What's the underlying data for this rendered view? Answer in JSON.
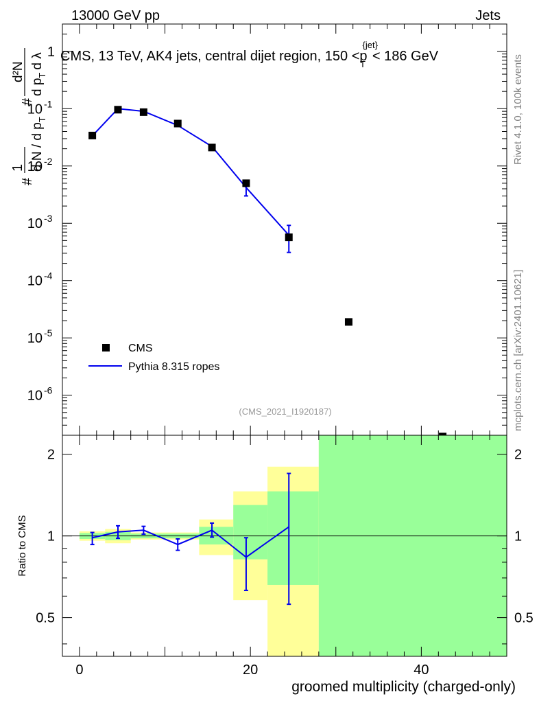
{
  "header": {
    "left": "13000 GeV pp",
    "right": "Jets"
  },
  "side_labels": {
    "rivet": "Rivet 4.1.0,  100k events",
    "mcplots": "mcplots.cern.ch [arXiv:2401.10621]"
  },
  "chart_data": {
    "type": "line",
    "title": "CMS, 13 TeV, AK4 jets, central dijet region, 150 < p_T^{jet} < 186 GeV",
    "title_parts": {
      "main": "CMS, 13 TeV, AK4 jets, central dijet region, 150 <",
      "p": "p",
      "sub": "T",
      "sup": "{jet}",
      "tail": "< 186 GeV"
    },
    "analysis_tag": "(CMS_2021_I1920187)",
    "xlabel": "groomed multiplicity (charged-only)",
    "ylabel": "1 / (dN / dp_T) · d²N / (dp_T dλ)",
    "ylabel_parts": {
      "top": "d²N",
      "mid_sym": "#",
      "dpt": "d p",
      "sub": "T",
      "dl": "d λ",
      "one": "1",
      "frac": "d N / d p"
    },
    "xlim": [
      -2,
      50
    ],
    "main_panel": {
      "yscale": "log",
      "ylim": [
        2e-07,
        3.0
      ],
      "ytick_labels": [
        {
          "value": 1,
          "label": "1"
        },
        {
          "value": 0.1,
          "label": "10",
          "exp": "-1"
        },
        {
          "value": 0.01,
          "label": "10",
          "exp": "-2"
        },
        {
          "value": 0.001,
          "label": "10",
          "exp": "-3"
        },
        {
          "value": 0.0001,
          "label": "10",
          "exp": "-4"
        },
        {
          "value": 1e-05,
          "label": "10",
          "exp": "-5"
        },
        {
          "value": 1e-06,
          "label": "10",
          "exp": "-6"
        }
      ]
    },
    "series": [
      {
        "name": "CMS",
        "style": "markers",
        "color": "#000000",
        "x": [
          1.5,
          4.5,
          7.5,
          11.5,
          15.5,
          19.5,
          24.5,
          31.5,
          42.5
        ],
        "y": [
          0.034,
          0.096,
          0.087,
          0.055,
          0.021,
          0.005,
          0.00057,
          1.9e-05,
          1.9e-07
        ]
      },
      {
        "name": "Pythia 8.315 ropes",
        "style": "line",
        "color": "#0000ee",
        "x": [
          1.5,
          4.5,
          7.5,
          11.5,
          15.5,
          19.5,
          24.5
        ],
        "y": [
          0.0335,
          0.1,
          0.09,
          0.051,
          0.0219,
          0.0042,
          0.00062
        ],
        "yerr_low": [
          0.0,
          0.0,
          0.0,
          0.0,
          0.0,
          0.0012,
          0.00031
        ],
        "yerr_high": [
          0.0,
          0.0,
          0.0,
          0.0,
          0.0,
          0.0006,
          0.0003
        ]
      }
    ],
    "legend": {
      "placement": "bottom-left",
      "entries": [
        "CMS",
        "Pythia 8.315 ropes"
      ]
    },
    "ratio_panel": {
      "ylabel": "Ratio to CMS",
      "yscale": "log",
      "ylim": [
        0.36,
        2.35
      ],
      "ytick_labels": [
        {
          "value": 0.5,
          "label": "0.5"
        },
        {
          "value": 1,
          "label": "1"
        },
        {
          "value": 2,
          "label": "2"
        }
      ],
      "reference_line": 1,
      "bins": [
        {
          "xlo": 0,
          "xhi": 3,
          "yellow": [
            0.96,
            1.04
          ],
          "green": [
            0.975,
            1.025
          ]
        },
        {
          "xlo": 3,
          "xhi": 6,
          "yellow": [
            0.94,
            1.06
          ],
          "green": [
            0.965,
            1.035
          ]
        },
        {
          "xlo": 6,
          "xhi": 9,
          "yellow": [
            0.97,
            1.03
          ],
          "green": [
            0.98,
            1.02
          ]
        },
        {
          "xlo": 9,
          "xhi": 14,
          "yellow": [
            0.97,
            1.03
          ],
          "green": [
            0.98,
            1.02
          ]
        },
        {
          "xlo": 14,
          "xhi": 18,
          "yellow": [
            0.85,
            1.15
          ],
          "green": [
            0.93,
            1.08
          ]
        },
        {
          "xlo": 18,
          "xhi": 22,
          "yellow": [
            0.58,
            1.46
          ],
          "green": [
            0.82,
            1.3
          ]
        },
        {
          "xlo": 22,
          "xhi": 28,
          "yellow": [
            0.2,
            1.8
          ],
          "green": [
            0.66,
            1.46
          ]
        },
        {
          "xlo": 28,
          "xhi": 50,
          "yellow": [
            0.01,
            10
          ],
          "green": [
            0.01,
            10
          ]
        }
      ],
      "ratio": {
        "x": [
          1.5,
          4.5,
          7.5,
          11.5,
          15.5,
          19.5,
          24.5
        ],
        "y": [
          0.985,
          1.035,
          1.05,
          0.93,
          1.05,
          0.835,
          1.08
        ],
        "yerr_low": [
          0.055,
          0.055,
          0.035,
          0.045,
          0.06,
          0.205,
          0.52
        ],
        "yerr_high": [
          0.045,
          0.055,
          0.035,
          0.045,
          0.065,
          0.15,
          0.62
        ]
      }
    },
    "xtick_labels": [
      {
        "value": 0,
        "label": "0"
      },
      {
        "value": 20,
        "label": "20"
      },
      {
        "value": 40,
        "label": "40"
      }
    ]
  }
}
